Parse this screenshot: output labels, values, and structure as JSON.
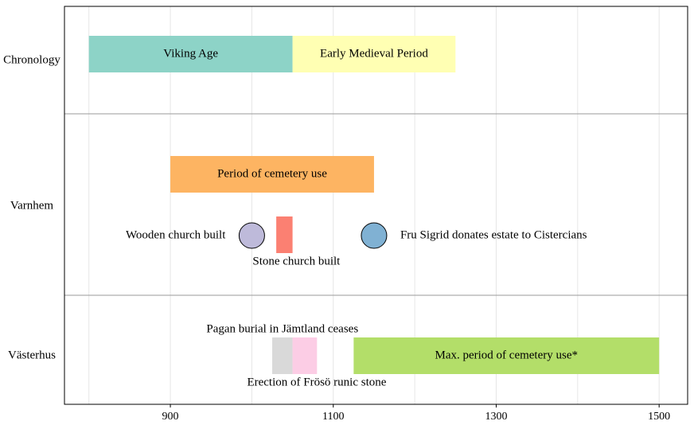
{
  "chart_data": {
    "type": "timeline",
    "xlim": [
      770,
      1535
    ],
    "x_ticks": [
      900,
      1100,
      1300,
      1500
    ],
    "grid": true,
    "rows": [
      {
        "label": "Chronology",
        "bars": [
          {
            "label": "Viking Age",
            "start": 800,
            "end": 1050,
            "color": "#8dd3c7",
            "lane": "upper",
            "label_position": "inside"
          },
          {
            "label": "Early Medieval Period",
            "start": 1050,
            "end": 1250,
            "color": "#ffffb3",
            "lane": "upper",
            "label_position": "inside"
          }
        ],
        "points": []
      },
      {
        "label": "Varnhem",
        "bars": [
          {
            "label": "Period of cemetery use",
            "start": 900,
            "end": 1150,
            "color": "#fdb462",
            "lane": "upper",
            "label_position": "inside"
          },
          {
            "label": "Stone church built",
            "start": 1030,
            "end": 1050,
            "color": "#fb8072",
            "lane": "lower-narrow",
            "label_position": "below"
          }
        ],
        "points": [
          {
            "label": "Wooden church built",
            "x": 1000,
            "color": "#bebada",
            "label_position": "left"
          },
          {
            "label": "Fru Sigrid donates estate to Cistercians",
            "x": 1150,
            "color": "#80b1d3",
            "label_position": "right"
          }
        ]
      },
      {
        "label": "Västerhus",
        "bars": [
          {
            "label": "Pagan burial in Jämtland ceases",
            "start": 1025,
            "end": 1050,
            "color": "#d9d9d9",
            "lane": "middle",
            "label_position": "above"
          },
          {
            "label": "Erection of Frösö runic stone",
            "start": 1050,
            "end": 1080,
            "color": "#fccde5",
            "lane": "middle",
            "label_position": "below"
          },
          {
            "label": "Max. period of cemetery use*",
            "start": 1125,
            "end": 1500,
            "color": "#b3de69",
            "lane": "middle",
            "label_position": "inside"
          }
        ],
        "points": []
      }
    ]
  }
}
